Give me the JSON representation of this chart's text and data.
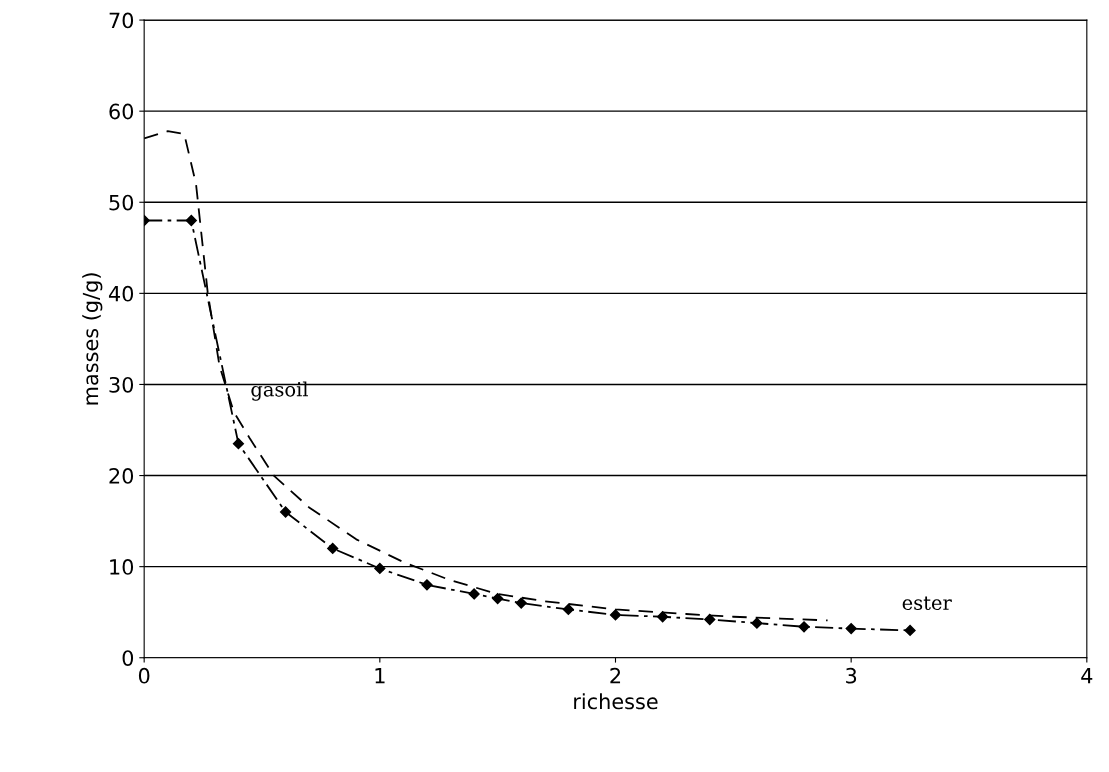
{
  "chart_data": {
    "type": "line",
    "xlabel": "richesse",
    "ylabel": "masses (g/g)",
    "xlim": [
      0,
      4
    ],
    "ylim": [
      0,
      70
    ],
    "xticks": [
      0,
      1,
      2,
      3,
      4
    ],
    "yticks": [
      0,
      10,
      20,
      30,
      40,
      50,
      60,
      70
    ],
    "grid": "y",
    "series": [
      {
        "name": "gasoil",
        "color": "#000000",
        "marker": "none",
        "line_style": "dashed",
        "x": [
          0,
          0.1,
          0.17,
          0.22,
          0.27,
          0.32,
          0.38,
          0.45,
          0.55,
          0.7,
          0.9,
          1.1,
          1.3,
          1.5,
          1.7,
          2.0,
          2.3,
          2.5,
          2.7,
          2.9
        ],
        "values": [
          57,
          57.8,
          57.5,
          52,
          40,
          32,
          27,
          24,
          20,
          16.5,
          13,
          10.5,
          8.5,
          7,
          6.2,
          5.3,
          4.8,
          4.5,
          4.3,
          4.1
        ]
      },
      {
        "name": "ester",
        "color": "#000000",
        "marker": "diamond",
        "line_style": "dashdot",
        "x": [
          0,
          0.2,
          0.4,
          0.6,
          0.8,
          1.0,
          1.2,
          1.4,
          1.5,
          1.6,
          1.8,
          2.0,
          2.2,
          2.4,
          2.6,
          2.8,
          3.0,
          3.25
        ],
        "values": [
          48,
          48,
          23.5,
          16,
          12,
          9.8,
          8,
          7,
          6.5,
          6,
          5.3,
          4.7,
          4.5,
          4.2,
          3.8,
          3.4,
          3.2,
          3.0
        ]
      }
    ]
  }
}
